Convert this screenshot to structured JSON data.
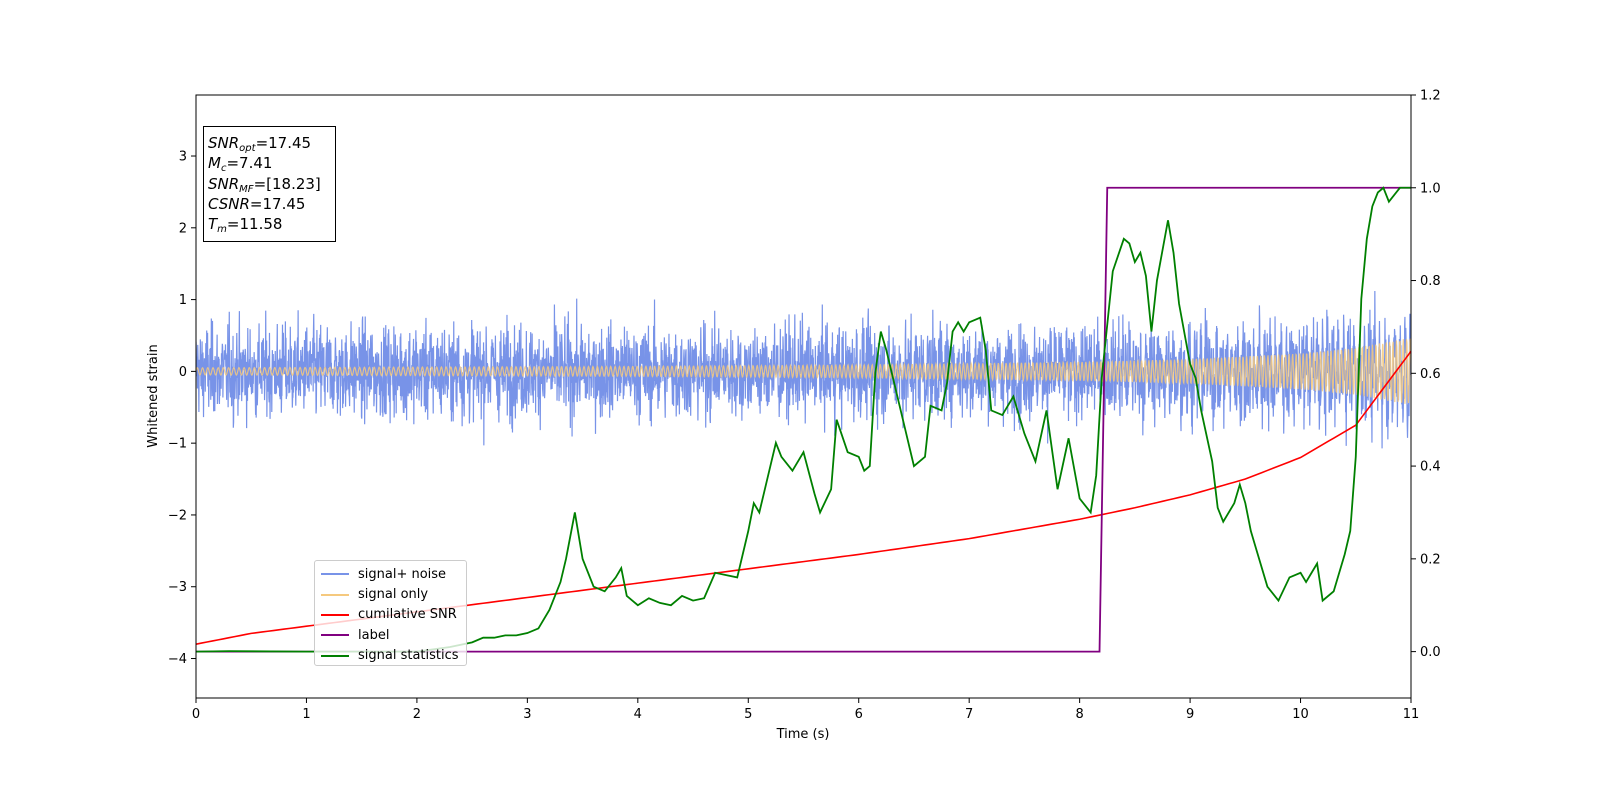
{
  "chart_data": {
    "type": "line",
    "xlabel": "Time (s)",
    "ylabel": "Whitened strain",
    "xlim": [
      0,
      11
    ],
    "ylim": [
      -4.55,
      3.85
    ],
    "y2lim": [
      -0.1,
      1.2
    ],
    "x_ticks": [
      0,
      1,
      2,
      3,
      4,
      5,
      6,
      7,
      8,
      9,
      10,
      11
    ],
    "x_tick_labels": [
      "0",
      "1",
      "2",
      "3",
      "4",
      "5",
      "6",
      "7",
      "8",
      "9",
      "10",
      "11"
    ],
    "y_ticks": [
      3,
      2,
      1,
      0,
      -1,
      -2,
      -3,
      -4
    ],
    "y_tick_labels": [
      "3",
      "2",
      "1",
      "0",
      "−1",
      "−2",
      "−3",
      "−4"
    ],
    "y2_ticks": [
      1.2,
      1.0,
      0.8,
      0.6,
      0.4,
      0.2,
      0.0
    ],
    "y2_tick_labels": [
      "1.2",
      "1.0",
      "0.8",
      "0.6",
      "0.4",
      "0.2",
      "0.0"
    ],
    "annotation": {
      "snr_opt": {
        "name": "SNR",
        "sub": "opt",
        "value": "=17.45"
      },
      "mc": {
        "name": "M",
        "sub": "c",
        "value": "=7.41"
      },
      "snr_mf": {
        "name": "SNR",
        "sub": "MF",
        "value": "=[18.23]"
      },
      "csnr": {
        "name": "CSNR",
        "value": "=17.45"
      },
      "tm": {
        "name": "T",
        "sub": "m",
        "value": "=11.58"
      }
    },
    "legend_position": "lower left",
    "series": [
      {
        "name": "signal+ noise",
        "color": "#7893e8",
        "axis": "left",
        "kind": "noise",
        "std": 0.62
      },
      {
        "name": "signal only",
        "color": "#f5c97e",
        "axis": "left",
        "kind": "chirp",
        "envelope_x": [
          0,
          2,
          4,
          6,
          8,
          9,
          10,
          10.5,
          11
        ],
        "envelope_y": [
          0.05,
          0.06,
          0.07,
          0.09,
          0.13,
          0.17,
          0.25,
          0.33,
          0.47
        ]
      },
      {
        "name": "cumilative SNR",
        "color": "#ff0000",
        "axis": "left",
        "x": [
          0,
          0.5,
          1,
          2,
          3,
          4,
          5,
          6,
          7,
          8,
          8.5,
          9,
          9.5,
          10,
          10.5,
          11
        ],
        "y": [
          -3.8,
          -3.65,
          -3.55,
          -3.35,
          -3.15,
          -2.95,
          -2.75,
          -2.55,
          -2.33,
          -2.06,
          -1.9,
          -1.72,
          -1.5,
          -1.2,
          -0.75,
          0.28
        ]
      },
      {
        "name": "label",
        "color": "#800080",
        "axis": "right",
        "x": [
          0,
          8.18,
          8.25,
          11
        ],
        "y": [
          0,
          0,
          1,
          1
        ]
      },
      {
        "name": "signal statistics",
        "color": "#008000",
        "axis": "right",
        "x": [
          0,
          0.3,
          1,
          2,
          2.3,
          2.5,
          2.6,
          2.7,
          2.8,
          2.9,
          3.0,
          3.1,
          3.2,
          3.3,
          3.35,
          3.43,
          3.5,
          3.6,
          3.7,
          3.8,
          3.85,
          3.9,
          4.0,
          4.1,
          4.2,
          4.3,
          4.4,
          4.5,
          4.6,
          4.7,
          4.8,
          4.9,
          5.0,
          5.05,
          5.1,
          5.2,
          5.25,
          5.3,
          5.4,
          5.5,
          5.6,
          5.65,
          5.75,
          5.8,
          5.9,
          6.0,
          6.05,
          6.1,
          6.15,
          6.2,
          6.25,
          6.3,
          6.4,
          6.5,
          6.6,
          6.65,
          6.75,
          6.8,
          6.85,
          6.9,
          6.95,
          7.0,
          7.1,
          7.15,
          7.2,
          7.3,
          7.4,
          7.5,
          7.6,
          7.7,
          7.8,
          7.9,
          8.0,
          8.1,
          8.15,
          8.2,
          8.3,
          8.4,
          8.45,
          8.5,
          8.55,
          8.6,
          8.65,
          8.7,
          8.8,
          8.85,
          8.9,
          9.0,
          9.05,
          9.1,
          9.2,
          9.25,
          9.3,
          9.4,
          9.45,
          9.5,
          9.55,
          9.6,
          9.7,
          9.8,
          9.9,
          10.0,
          10.05,
          10.1,
          10.15,
          10.2,
          10.3,
          10.4,
          10.45,
          10.5,
          10.55,
          10.6,
          10.65,
          10.7,
          10.75,
          10.8,
          10.9,
          11.0
        ],
        "y": [
          0,
          0.001,
          0.0,
          0.0,
          0.01,
          0.02,
          0.03,
          0.03,
          0.035,
          0.035,
          0.04,
          0.05,
          0.09,
          0.15,
          0.2,
          0.3,
          0.2,
          0.14,
          0.13,
          0.16,
          0.18,
          0.12,
          0.1,
          0.115,
          0.105,
          0.1,
          0.12,
          0.11,
          0.115,
          0.17,
          0.165,
          0.16,
          0.26,
          0.32,
          0.3,
          0.4,
          0.45,
          0.42,
          0.39,
          0.43,
          0.34,
          0.3,
          0.35,
          0.5,
          0.43,
          0.42,
          0.39,
          0.4,
          0.6,
          0.69,
          0.65,
          0.6,
          0.5,
          0.4,
          0.42,
          0.53,
          0.52,
          0.58,
          0.69,
          0.71,
          0.69,
          0.71,
          0.72,
          0.65,
          0.52,
          0.51,
          0.55,
          0.47,
          0.41,
          0.52,
          0.35,
          0.46,
          0.33,
          0.3,
          0.38,
          0.59,
          0.82,
          0.89,
          0.88,
          0.84,
          0.86,
          0.81,
          0.69,
          0.8,
          0.93,
          0.86,
          0.75,
          0.62,
          0.59,
          0.52,
          0.41,
          0.31,
          0.28,
          0.32,
          0.36,
          0.32,
          0.26,
          0.22,
          0.14,
          0.11,
          0.16,
          0.17,
          0.15,
          0.17,
          0.19,
          0.11,
          0.13,
          0.21,
          0.26,
          0.42,
          0.76,
          0.89,
          0.96,
          0.99,
          1.0,
          0.97,
          1.0,
          1.0
        ]
      }
    ]
  }
}
